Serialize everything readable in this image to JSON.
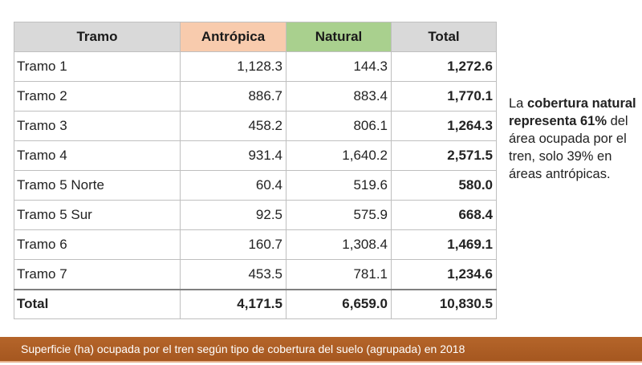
{
  "table": {
    "headers": {
      "tramo": "Tramo",
      "antropica": "Antrópica",
      "natural": "Natural",
      "total": "Total"
    },
    "header_colors": {
      "tramo": "#d9d9d9",
      "antropica": "#f8cbad",
      "natural": "#a9d08e",
      "total": "#d9d9d9"
    },
    "rows": [
      {
        "tramo": "Tramo 1",
        "antropica": "1,128.3",
        "natural": "144.3",
        "total": "1,272.6"
      },
      {
        "tramo": "Tramo 2",
        "antropica": "886.7",
        "natural": "883.4",
        "total": "1,770.1"
      },
      {
        "tramo": "Tramo 3",
        "antropica": "458.2",
        "natural": "806.1",
        "total": "1,264.3"
      },
      {
        "tramo": "Tramo 4",
        "antropica": "931.4",
        "natural": "1,640.2",
        "total": "2,571.5"
      },
      {
        "tramo": "Tramo 5 Norte",
        "antropica": "60.4",
        "natural": "519.6",
        "total": "580.0"
      },
      {
        "tramo": "Tramo 5 Sur",
        "antropica": "92.5",
        "natural": "575.9",
        "total": "668.4"
      },
      {
        "tramo": "Tramo 6",
        "antropica": "160.7",
        "natural": "1,308.4",
        "total": "1,469.1"
      },
      {
        "tramo": "Tramo 7",
        "antropica": "453.5",
        "natural": "781.1",
        "total": "1,234.6"
      }
    ],
    "total_row": {
      "tramo": "Total",
      "antropica": "4,171.5",
      "natural": "6,659.0",
      "total": "10,830.5"
    }
  },
  "note": {
    "prefix": "La ",
    "bold": "cobertura natural representa 61%",
    "rest": " del área ocupada por el tren, solo 39% en áreas antrópicas."
  },
  "caption": {
    "text": "Superficie (ha) ocupada por el tren según tipo de cobertura del suelo (agrupada) en 2018",
    "bar_color": "#a4561f"
  }
}
